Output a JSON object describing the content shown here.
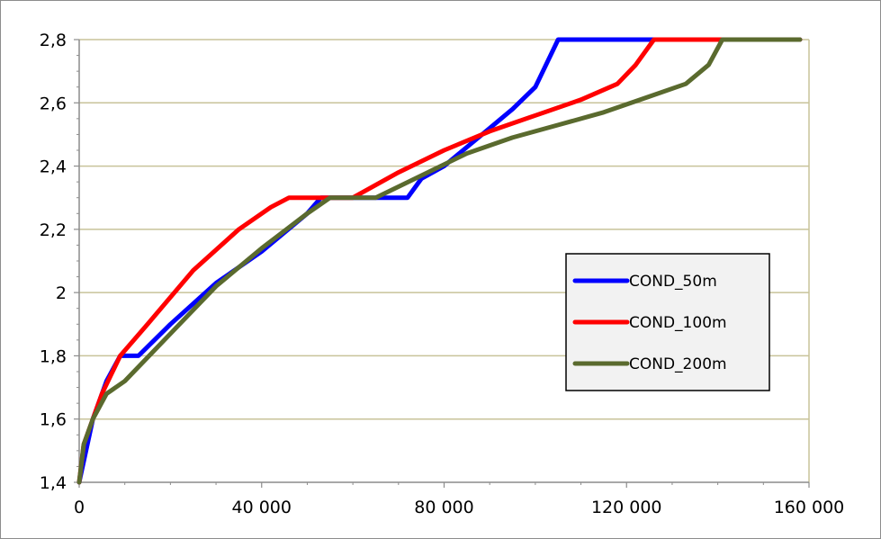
{
  "chart_data": {
    "type": "line",
    "title": "",
    "xlabel": "",
    "ylabel": "",
    "xlim": [
      0,
      160000
    ],
    "ylim": [
      1.4,
      2.8
    ],
    "x_ticks": [
      0,
      40000,
      80000,
      120000,
      160000
    ],
    "x_tick_labels": [
      "0",
      "40 000",
      "80 000",
      "120 000",
      "160 000"
    ],
    "y_ticks": [
      1.4,
      1.6,
      1.8,
      2.0,
      2.2,
      2.4,
      2.6,
      2.8
    ],
    "y_tick_labels": [
      "1,4",
      "1,6",
      "1,8",
      "2",
      "2,2",
      "2,4",
      "2,6",
      "2,8"
    ],
    "grid": "horizontal",
    "legend_position": "right",
    "series": [
      {
        "name": "COND_50m",
        "color": "#0000ff",
        "points": [
          [
            0,
            1.4
          ],
          [
            3000,
            1.6
          ],
          [
            6000,
            1.72
          ],
          [
            9000,
            1.8
          ],
          [
            13000,
            1.8
          ],
          [
            20000,
            1.9
          ],
          [
            30000,
            2.03
          ],
          [
            40000,
            2.13
          ],
          [
            50000,
            2.25
          ],
          [
            53000,
            2.3
          ],
          [
            72000,
            2.3
          ],
          [
            75000,
            2.36
          ],
          [
            80000,
            2.4
          ],
          [
            85000,
            2.46
          ],
          [
            90000,
            2.52
          ],
          [
            95000,
            2.58
          ],
          [
            100000,
            2.65
          ],
          [
            103000,
            2.74
          ],
          [
            105000,
            2.8
          ],
          [
            158000,
            2.8
          ]
        ]
      },
      {
        "name": "COND_100m",
        "color": "#ff0000",
        "points": [
          [
            0,
            1.4
          ],
          [
            1000,
            1.52
          ],
          [
            3000,
            1.6
          ],
          [
            5000,
            1.68
          ],
          [
            9000,
            1.8
          ],
          [
            15000,
            1.9
          ],
          [
            25000,
            2.07
          ],
          [
            35000,
            2.2
          ],
          [
            42000,
            2.27
          ],
          [
            46000,
            2.3
          ],
          [
            60000,
            2.3
          ],
          [
            70000,
            2.38
          ],
          [
            80000,
            2.45
          ],
          [
            90000,
            2.51
          ],
          [
            100000,
            2.56
          ],
          [
            110000,
            2.61
          ],
          [
            118000,
            2.66
          ],
          [
            122000,
            2.72
          ],
          [
            125000,
            2.78
          ],
          [
            126000,
            2.8
          ],
          [
            158000,
            2.8
          ]
        ]
      },
      {
        "name": "COND_200m",
        "color": "#5a6a2e",
        "points": [
          [
            0,
            1.4
          ],
          [
            1000,
            1.52
          ],
          [
            3000,
            1.6
          ],
          [
            6000,
            1.68
          ],
          [
            10000,
            1.72
          ],
          [
            20000,
            1.87
          ],
          [
            30000,
            2.02
          ],
          [
            40000,
            2.14
          ],
          [
            50000,
            2.25
          ],
          [
            55000,
            2.3
          ],
          [
            65000,
            2.3
          ],
          [
            75000,
            2.37
          ],
          [
            85000,
            2.44
          ],
          [
            95000,
            2.49
          ],
          [
            105000,
            2.53
          ],
          [
            115000,
            2.57
          ],
          [
            125000,
            2.62
          ],
          [
            133000,
            2.66
          ],
          [
            138000,
            2.72
          ],
          [
            141000,
            2.8
          ],
          [
            158000,
            2.8
          ]
        ]
      }
    ]
  }
}
